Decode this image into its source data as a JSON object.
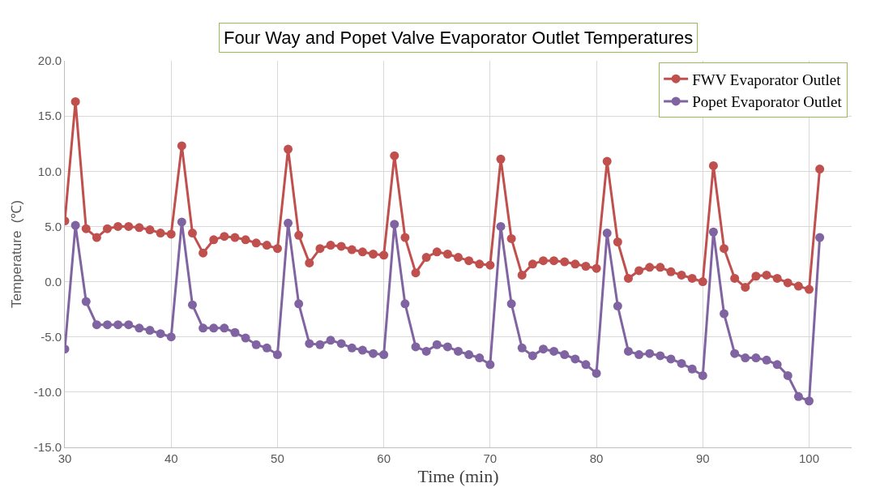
{
  "chart_data": {
    "type": "line",
    "title": "Four Way and Popet Valve Evaporator Outlet Temperatures",
    "xlabel": "Time (min)",
    "ylabel": "Temperature  (℃)",
    "x": [
      30,
      31,
      32,
      33,
      34,
      35,
      36,
      37,
      38,
      39,
      40,
      41,
      42,
      43,
      44,
      45,
      46,
      47,
      48,
      49,
      50,
      51,
      52,
      53,
      54,
      55,
      56,
      57,
      58,
      59,
      60,
      61,
      62,
      63,
      64,
      65,
      66,
      67,
      68,
      69,
      70,
      71,
      72,
      73,
      74,
      75,
      76,
      77,
      78,
      79,
      80,
      81,
      82,
      83,
      84,
      85,
      86,
      87,
      88,
      89,
      90,
      91,
      92,
      93,
      94,
      95,
      96,
      97,
      98,
      99,
      100,
      101
    ],
    "series": [
      {
        "name": "FWV Evaporator Outlet",
        "color": "#c0504d",
        "values": [
          5.5,
          16.3,
          4.8,
          4.0,
          4.8,
          5.0,
          5.0,
          4.9,
          4.7,
          4.4,
          4.3,
          12.3,
          4.4,
          2.6,
          3.8,
          4.1,
          4.0,
          3.8,
          3.5,
          3.3,
          3.0,
          12.0,
          4.2,
          1.7,
          3.0,
          3.3,
          3.2,
          2.9,
          2.7,
          2.5,
          2.4,
          11.4,
          4.0,
          0.8,
          2.2,
          2.7,
          2.5,
          2.2,
          1.9,
          1.6,
          1.5,
          11.1,
          3.9,
          0.6,
          1.6,
          1.9,
          1.9,
          1.8,
          1.6,
          1.4,
          1.2,
          10.9,
          3.6,
          0.3,
          1.0,
          1.3,
          1.3,
          0.9,
          0.6,
          0.3,
          0.0,
          10.5,
          3.0,
          0.3,
          -0.5,
          0.5,
          0.6,
          0.3,
          -0.1,
          -0.4,
          -0.7,
          10.2
        ]
      },
      {
        "name": "Popet Evaporator Outlet",
        "color": "#8064a2",
        "values": [
          -6.1,
          5.1,
          -1.8,
          -3.9,
          -3.9,
          -3.9,
          -3.9,
          -4.2,
          -4.4,
          -4.7,
          -5.0,
          5.4,
          -2.1,
          -4.2,
          -4.2,
          -4.2,
          -4.6,
          -5.1,
          -5.7,
          -6.0,
          -6.6,
          5.3,
          -2.0,
          -5.6,
          -5.7,
          -5.3,
          -5.6,
          -6.0,
          -6.2,
          -6.5,
          -6.6,
          5.2,
          -2.0,
          -5.9,
          -6.3,
          -5.7,
          -5.9,
          -6.3,
          -6.6,
          -6.9,
          -7.5,
          5.0,
          -2.0,
          -6.0,
          -6.7,
          -6.1,
          -6.3,
          -6.6,
          -7.0,
          -7.5,
          -8.3,
          4.4,
          -2.2,
          -6.3,
          -6.6,
          -6.5,
          -6.7,
          -7.0,
          -7.4,
          -7.9,
          -8.5,
          4.5,
          -2.9,
          -6.5,
          -6.9,
          -6.9,
          -7.1,
          -7.5,
          -8.5,
          -10.4,
          -10.8,
          4.0
        ]
      }
    ],
    "xlim": [
      30,
      104
    ],
    "xticks": [
      30,
      40,
      50,
      60,
      70,
      80,
      90,
      100
    ],
    "ylim": [
      -15,
      20
    ],
    "yticks": [
      {
        "value": -15,
        "label": "-15.0"
      },
      {
        "value": -10,
        "label": "-10.0"
      },
      {
        "value": -5,
        "label": "-5.0"
      },
      {
        "value": 0,
        "label": "0.0"
      },
      {
        "value": 5,
        "label": "5.0"
      },
      {
        "value": 10,
        "label": "10.0"
      },
      {
        "value": 15,
        "label": "15.0"
      },
      {
        "value": 20,
        "label": "20.0"
      }
    ],
    "grid": true,
    "legend": "top right",
    "marker": "circle",
    "line_style": "solid"
  }
}
